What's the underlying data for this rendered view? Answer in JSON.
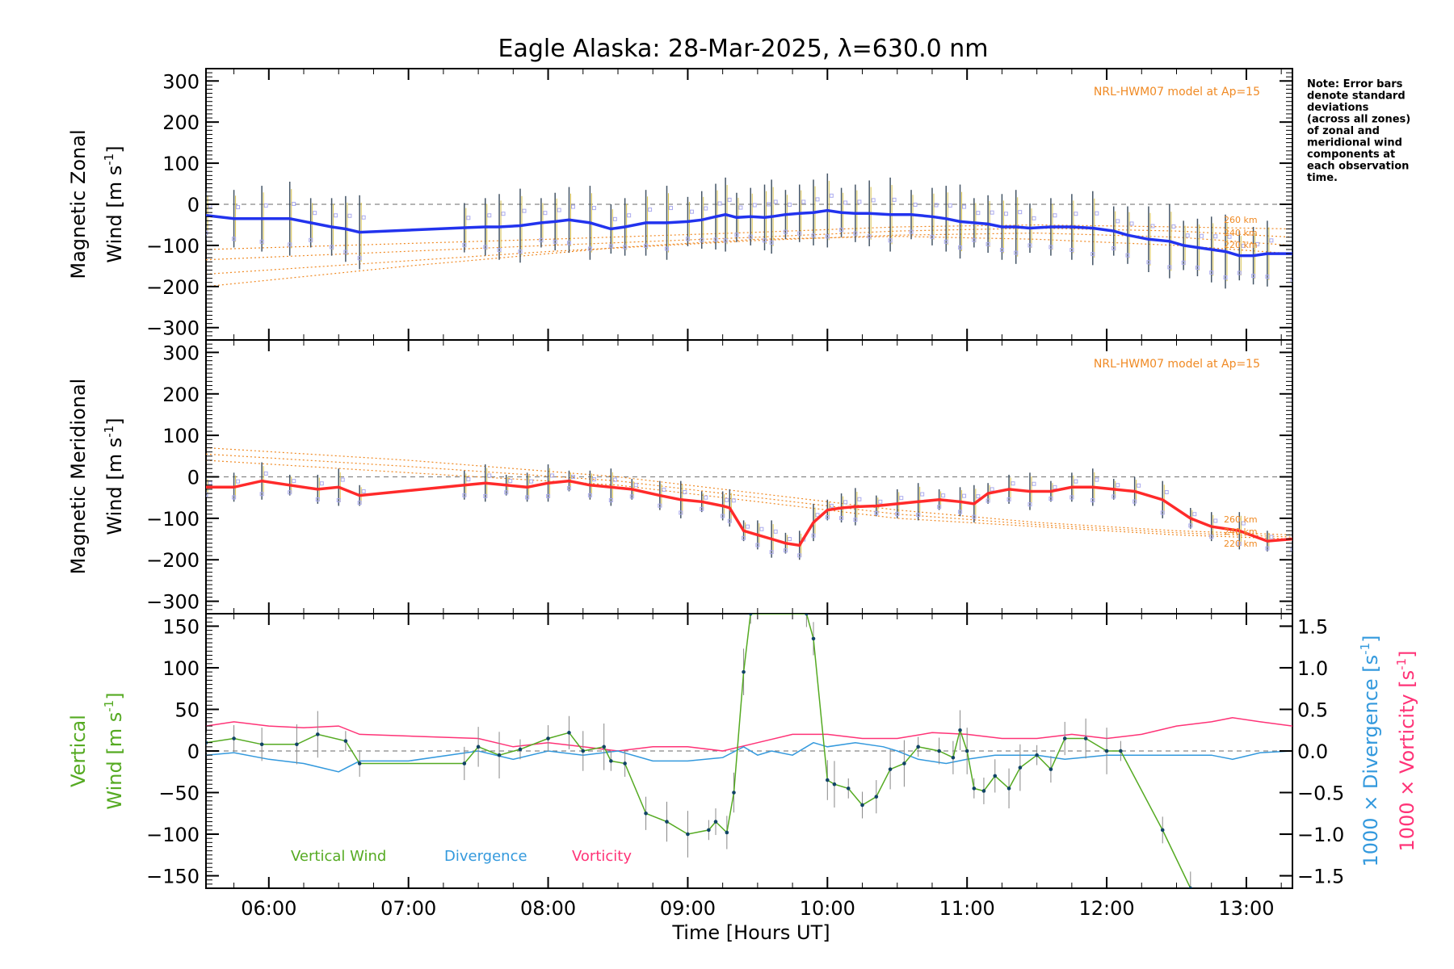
{
  "title": "Eagle Alaska: 28-Mar-2025, λ=630.0 nm",
  "note": [
    "Note: Error bars",
    "denote standard",
    "deviations",
    "(across all zones)",
    "of zonal and",
    "meridional wind",
    "components at",
    "each observation",
    "time."
  ],
  "colors": {
    "zonal": "#2233ee",
    "meridional": "#ff2a2a",
    "vertical": "#55aa22",
    "divergence": "#3399dd",
    "vorticity": "#ff3377",
    "model": "#f08a24",
    "obs": "#aaaaee",
    "zero": "#888888"
  },
  "x_axis": {
    "label": "Time [Hours UT]",
    "ticks": [
      "06:00",
      "07:00",
      "08:00",
      "09:00",
      "10:00",
      "11:00",
      "12:00",
      "13:00"
    ],
    "tick_values": [
      6,
      7,
      8,
      9,
      10,
      11,
      12,
      13
    ],
    "range": [
      5.55,
      13.33
    ]
  },
  "panels": {
    "zonal": {
      "ylabel1": "Magnetic Zonal",
      "ylabel2": "Wind [m s",
      "ylabel_sup": "-1",
      "ylabel_end": "]",
      "model_label": "NRL-HWM07 model at Ap=15",
      "altitudes": [
        "260 km",
        "240 km",
        "220 km"
      ],
      "yticks": [
        "300",
        "200",
        "100",
        "0",
        "−100",
        "−200",
        "−300"
      ],
      "ytick_values": [
        300,
        200,
        100,
        0,
        -100,
        -200,
        -300
      ]
    },
    "meridional": {
      "ylabel1": "Magnetic Meridional",
      "ylabel2": "Wind [m s",
      "ylabel_sup": "-1",
      "ylabel_end": "]",
      "model_label": "NRL-HWM07 model at Ap=15",
      "altitudes": [
        "260 km",
        "240 km",
        "220 km"
      ],
      "yticks": [
        "300",
        "200",
        "100",
        "0",
        "−100",
        "−200",
        "−300"
      ],
      "ytick_values": [
        300,
        200,
        100,
        0,
        -100,
        -200,
        -300
      ]
    },
    "vertical": {
      "ylabel1": "Vertical",
      "ylabel2": "Wind [m s",
      "ylabel_sup": "-1",
      "ylabel_end": "]",
      "yticks": [
        "150",
        "100",
        "50",
        "0",
        "−50",
        "−100",
        "−150"
      ],
      "ytick_values": [
        150,
        100,
        50,
        0,
        -50,
        -100,
        -150
      ],
      "right1_label": "1000 × Divergence [s",
      "right2_label": "1000 × Vorticity [s",
      "right_sup": "-1",
      "right_end": "]",
      "right_ticks": [
        "1.5",
        "1.0",
        "0.5",
        "0.0",
        "−0.5",
        "−1.0",
        "−1.5"
      ],
      "right_tick_values": [
        1.5,
        1.0,
        0.5,
        0.0,
        -0.5,
        -1.0,
        -1.5
      ],
      "legend": [
        "Vertical Wind",
        "Divergence",
        "Vorticity"
      ]
    }
  },
  "chart_data": [
    {
      "type": "line",
      "panel": "zonal",
      "title": "Eagle Alaska: 28-Mar-2025, λ=630.0 nm",
      "xlabel": "Time [Hours UT]",
      "ylabel": "Magnetic Zonal Wind [m s-1]",
      "ylim": [
        -330,
        330
      ],
      "xlim": [
        5.55,
        13.33
      ],
      "series": [
        {
          "name": "Zonal wind",
          "x": [
            5.55,
            5.75,
            5.95,
            6.15,
            6.3,
            6.45,
            6.55,
            6.65,
            7.4,
            7.55,
            7.65,
            7.8,
            7.95,
            8.05,
            8.15,
            8.3,
            8.45,
            8.55,
            8.7,
            8.85,
            9.0,
            9.1,
            9.2,
            9.27,
            9.35,
            9.45,
            9.55,
            9.6,
            9.7,
            9.8,
            9.9,
            10.0,
            10.1,
            10.2,
            10.3,
            10.45,
            10.6,
            10.75,
            10.85,
            10.95,
            11.05,
            11.15,
            11.25,
            11.35,
            11.45,
            11.6,
            11.75,
            11.9,
            12.05,
            12.15,
            12.3,
            12.45,
            12.55,
            12.65,
            12.75,
            12.85,
            12.95,
            13.05,
            13.15,
            13.33
          ],
          "values": [
            -27,
            -35,
            -35,
            -35,
            -45,
            -55,
            -60,
            -68,
            -57,
            -55,
            -55,
            -52,
            -45,
            -42,
            -38,
            -45,
            -60,
            -55,
            -45,
            -45,
            -42,
            -38,
            -30,
            -25,
            -32,
            -30,
            -32,
            -30,
            -25,
            -22,
            -20,
            -15,
            -20,
            -22,
            -22,
            -25,
            -25,
            -30,
            -35,
            -42,
            -45,
            -48,
            -55,
            -55,
            -58,
            -55,
            -55,
            -58,
            -65,
            -75,
            -85,
            -90,
            -100,
            -105,
            -110,
            -115,
            -125,
            -125,
            -120,
            -120
          ]
        },
        {
          "name": "Model 260 km",
          "x": [
            5.55,
            8.0,
            9.5,
            10.5,
            11.5,
            12.5,
            13.33
          ],
          "values": [
            -110,
            -85,
            -68,
            -55,
            -50,
            -55,
            -60
          ]
        },
        {
          "name": "Model 240 km",
          "x": [
            5.55,
            8.0,
            9.5,
            10.5,
            11.5,
            12.5,
            13.33
          ],
          "values": [
            -135,
            -100,
            -80,
            -65,
            -58,
            -65,
            -80
          ]
        },
        {
          "name": "Model 220 km",
          "x": [
            5.55,
            8.0,
            9.5,
            10.5,
            11.5,
            12.5,
            13.33
          ],
          "values": [
            -170,
            -115,
            -88,
            -75,
            -70,
            -80,
            -100
          ]
        },
        {
          "name": "Model low",
          "x": [
            5.55,
            7.0,
            8.5,
            9.5,
            10.5,
            11.5,
            12.5,
            13.33
          ],
          "values": [
            -200,
            -150,
            -105,
            -85,
            -78,
            -85,
            -100,
            -120
          ]
        }
      ]
    },
    {
      "type": "line",
      "panel": "meridional",
      "ylabel": "Magnetic Meridional Wind [m s-1]",
      "ylim": [
        -330,
        330
      ],
      "xlim": [
        5.55,
        13.33
      ],
      "series": [
        {
          "name": "Meridional wind",
          "x": [
            5.55,
            5.75,
            5.95,
            6.15,
            6.35,
            6.5,
            6.65,
            7.4,
            7.55,
            7.7,
            7.85,
            8.0,
            8.15,
            8.3,
            8.45,
            8.6,
            8.8,
            8.95,
            9.1,
            9.25,
            9.3,
            9.4,
            9.5,
            9.6,
            9.7,
            9.8,
            9.9,
            10.0,
            10.1,
            10.2,
            10.35,
            10.5,
            10.65,
            10.8,
            10.95,
            11.05,
            11.15,
            11.3,
            11.45,
            11.6,
            11.75,
            11.9,
            12.05,
            12.2,
            12.4,
            12.6,
            12.75,
            12.95,
            13.15,
            13.33
          ],
          "values": [
            -25,
            -25,
            -10,
            -20,
            -30,
            -25,
            -45,
            -20,
            -15,
            -20,
            -25,
            -15,
            -10,
            -20,
            -25,
            -30,
            -45,
            -55,
            -60,
            -70,
            -75,
            -130,
            -140,
            -150,
            -160,
            -165,
            -110,
            -80,
            -75,
            -72,
            -70,
            -65,
            -60,
            -55,
            -60,
            -65,
            -40,
            -30,
            -35,
            -35,
            -25,
            -25,
            -30,
            -35,
            -55,
            -100,
            -120,
            -130,
            -155,
            -150
          ]
        },
        {
          "name": "Model 260 km",
          "x": [
            5.55,
            7.0,
            8.5,
            9.5,
            10.5,
            11.5,
            12.5,
            13.33
          ],
          "values": [
            70,
            40,
            0,
            -40,
            -80,
            -110,
            -130,
            -140
          ]
        },
        {
          "name": "Model 240 km",
          "x": [
            5.55,
            7.0,
            8.5,
            9.5,
            10.5,
            11.5,
            12.5,
            13.33
          ],
          "values": [
            55,
            25,
            -10,
            -50,
            -90,
            -115,
            -135,
            -145
          ]
        },
        {
          "name": "Model 220 km",
          "x": [
            5.55,
            7.0,
            8.5,
            9.5,
            10.5,
            11.5,
            12.5,
            13.33
          ],
          "values": [
            40,
            10,
            -20,
            -60,
            -100,
            -120,
            -140,
            -150
          ]
        }
      ]
    },
    {
      "type": "line",
      "panel": "vertical",
      "ylabel": "Vertical Wind [m s-1]",
      "ylim": [
        -165,
        165
      ],
      "xlim": [
        5.55,
        13.33
      ],
      "series": [
        {
          "name": "Vertical Wind",
          "x": [
            5.55,
            5.75,
            5.95,
            6.2,
            6.35,
            6.55,
            6.65,
            7.4,
            7.5,
            7.65,
            7.8,
            8.0,
            8.15,
            8.25,
            8.4,
            8.45,
            8.55,
            8.7,
            8.85,
            9.0,
            9.15,
            9.2,
            9.28,
            9.33,
            9.4,
            9.45,
            9.85,
            9.9,
            10.0,
            10.05,
            10.15,
            10.25,
            10.35,
            10.45,
            10.55,
            10.65,
            10.8,
            10.9,
            10.95,
            11.0,
            11.05,
            11.12,
            11.2,
            11.3,
            11.38,
            11.5,
            11.6,
            11.7,
            11.85,
            12.0,
            12.1,
            12.4,
            12.6
          ],
          "values": [
            10,
            15,
            8,
            8,
            20,
            12,
            -15,
            -15,
            5,
            -5,
            2,
            15,
            22,
            0,
            5,
            -12,
            -15,
            -75,
            -85,
            -100,
            -95,
            -85,
            -98,
            -50,
            95,
            165,
            165,
            135,
            -35,
            -40,
            -45,
            -65,
            -55,
            -22,
            -15,
            5,
            0,
            -8,
            25,
            0,
            -45,
            -48,
            -30,
            -45,
            -20,
            -5,
            -22,
            15,
            15,
            0,
            0,
            -95,
            -165
          ]
        },
        {
          "name": "Divergence",
          "x": [
            5.55,
            5.75,
            6.0,
            6.25,
            6.5,
            6.65,
            7.0,
            7.5,
            7.75,
            8.0,
            8.25,
            8.5,
            8.75,
            9.0,
            9.25,
            9.4,
            9.5,
            9.6,
            9.75,
            9.9,
            10.0,
            10.2,
            10.4,
            10.5,
            10.65,
            10.85,
            11.0,
            11.2,
            11.5,
            11.7,
            12.0,
            12.25,
            12.5,
            12.75,
            12.9,
            13.1,
            13.33
          ],
          "values": [
            -0.05,
            -0.02,
            -0.1,
            -0.15,
            -0.25,
            -0.12,
            -0.12,
            0.0,
            -0.1,
            0.0,
            -0.05,
            0.0,
            -0.12,
            -0.12,
            -0.08,
            0.05,
            -0.05,
            0.0,
            -0.05,
            0.1,
            0.05,
            0.1,
            0.05,
            0.0,
            -0.1,
            -0.15,
            -0.1,
            -0.05,
            -0.05,
            -0.1,
            -0.05,
            -0.05,
            -0.05,
            -0.05,
            -0.1,
            -0.02,
            0.0
          ]
        },
        {
          "name": "Vorticity",
          "x": [
            5.55,
            5.75,
            6.0,
            6.25,
            6.5,
            6.65,
            7.0,
            7.5,
            7.75,
            8.0,
            8.25,
            8.5,
            8.75,
            9.0,
            9.25,
            9.5,
            9.75,
            10.0,
            10.25,
            10.5,
            10.75,
            11.0,
            11.25,
            11.5,
            11.75,
            12.0,
            12.25,
            12.5,
            12.75,
            12.9,
            13.1,
            13.33
          ],
          "values": [
            0.3,
            0.35,
            0.3,
            0.28,
            0.3,
            0.2,
            0.18,
            0.15,
            0.05,
            0.1,
            0.05,
            0.0,
            0.05,
            0.05,
            0.0,
            0.1,
            0.2,
            0.2,
            0.15,
            0.15,
            0.22,
            0.2,
            0.15,
            0.15,
            0.2,
            0.15,
            0.2,
            0.3,
            0.35,
            0.4,
            0.35,
            0.3
          ]
        }
      ]
    }
  ]
}
